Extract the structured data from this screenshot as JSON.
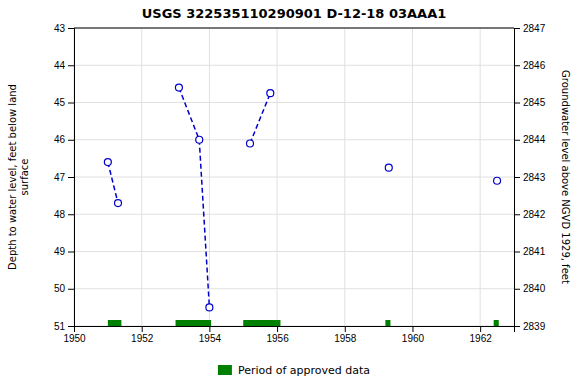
{
  "chart_data": {
    "type": "line",
    "title": "USGS 322535110290901 D-12-18 03AAA1",
    "y_label": "Depth to water level, feet below land\nsurface",
    "y2_label": "Groundwater level above NGVD 1929, feet",
    "xlim": [
      1950,
      1963
    ],
    "xticks": [
      1950,
      1952,
      1954,
      1956,
      1958,
      1960,
      1962
    ],
    "ylim": [
      51.0,
      43.0
    ],
    "yticks": [
      43.0,
      44.0,
      45.0,
      46.0,
      47.0,
      48.0,
      49.0,
      50.0,
      51.0
    ],
    "y2lim": [
      2839.0,
      2847.0
    ],
    "y2ticks": [
      2847.0,
      2846.0,
      2845.0,
      2844.0,
      2843.0,
      2842.0,
      2841.0,
      2840.0,
      2839.0
    ],
    "grid": true,
    "legend": "bottom",
    "series": [
      {
        "x": [
          1951.0,
          1951.3
        ],
        "values": [
          46.6,
          47.7
        ],
        "color": "#0000cc",
        "line_style": "dashed",
        "marker": "circle"
      },
      {
        "x": [
          1953.1,
          1953.7,
          1954.0
        ],
        "values": [
          44.6,
          46.0,
          50.5
        ],
        "color": "#0000cc",
        "line_style": "dashed",
        "marker": "circle"
      },
      {
        "x": [
          1955.2,
          1955.8
        ],
        "values": [
          46.1,
          44.75
        ],
        "color": "#0000cc",
        "line_style": "dashed",
        "marker": "circle"
      },
      {
        "x": [
          1959.3
        ],
        "values": [
          46.75
        ],
        "color": "#0000cc",
        "line_style": "none",
        "marker": "circle"
      },
      {
        "x": [
          1962.5
        ],
        "values": [
          47.1
        ],
        "color": "#0000cc",
        "line_style": "none",
        "marker": "circle"
      }
    ],
    "bands": {
      "name": "Period of approved data",
      "color": "#008000",
      "ranges": [
        [
          1951.0,
          1951.4
        ],
        [
          1953.0,
          1954.05
        ],
        [
          1955.0,
          1956.1
        ],
        [
          1959.2,
          1959.35
        ],
        [
          1962.4,
          1962.55
        ]
      ]
    }
  }
}
